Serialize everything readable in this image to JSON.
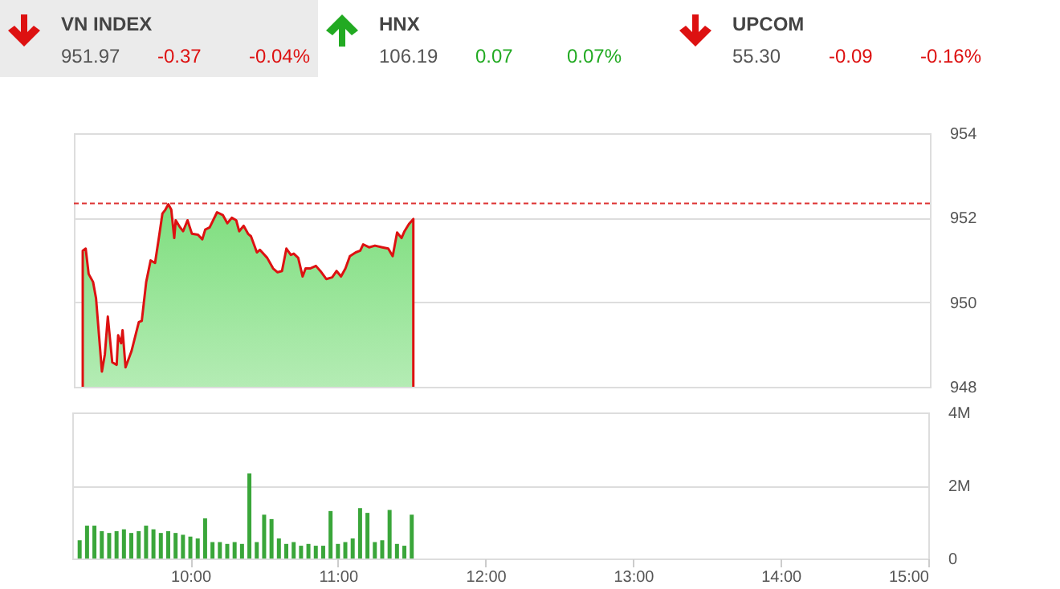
{
  "chart_data": [
    {
      "type": "other",
      "annotations": [
        "VN INDEX",
        "951.97",
        "-0.37",
        "-0.04%",
        "HNX",
        "106.19",
        "0.07",
        "0.07%",
        "UPCOM",
        "55.30",
        "-0.09",
        "-0.16%"
      ]
    },
    {
      "type": "area",
      "xlim": [
        9.2,
        15
      ],
      "ylim": [
        948,
        954
      ],
      "yticks": [
        948,
        950,
        952,
        954
      ],
      "grid": "y",
      "tick_labels": "y",
      "ref_lines": [
        {
          "axis": "y",
          "value": 952.34,
          "color": "#dd3333",
          "line_style": "dashed"
        }
      ],
      "series": [
        {
          "color": "#dd1111",
          "x": [
            9.26,
            9.28,
            9.3,
            9.33,
            9.35,
            9.39,
            9.41,
            9.43,
            9.46,
            9.49,
            9.5,
            9.52,
            9.53,
            9.55,
            9.59,
            9.64,
            9.66,
            9.69,
            9.72,
            9.75,
            9.78,
            9.8,
            9.82,
            9.84,
            9.86,
            9.88,
            9.89,
            9.92,
            9.94,
            9.97,
            10.0,
            10.04,
            10.07,
            10.09,
            10.12,
            10.17,
            10.21,
            10.24,
            10.27,
            10.3,
            10.32,
            10.35,
            10.38,
            10.4,
            10.44,
            10.46,
            10.51,
            10.55,
            10.58,
            10.61,
            10.64,
            10.67,
            10.69,
            10.72,
            10.75,
            10.77,
            10.8,
            10.84,
            10.87,
            10.91,
            10.95,
            10.98,
            11.01,
            11.04,
            11.07,
            11.11,
            11.14,
            11.16,
            11.2,
            11.24,
            11.29,
            11.33,
            11.36,
            11.39,
            11.42,
            11.44,
            11.47,
            11.5
          ],
          "values": [
            951.22,
            951.27,
            950.67,
            950.48,
            950.1,
            948.36,
            948.77,
            949.66,
            948.58,
            948.52,
            949.22,
            949.03,
            949.34,
            948.46,
            948.84,
            949.53,
            949.56,
            950.48,
            950.99,
            950.93,
            951.62,
            952.1,
            952.19,
            952.32,
            952.19,
            951.52,
            951.94,
            951.77,
            951.68,
            951.94,
            951.62,
            951.6,
            951.49,
            951.72,
            951.77,
            952.13,
            952.06,
            951.87,
            952.0,
            951.94,
            951.68,
            951.81,
            951.62,
            951.56,
            951.18,
            951.24,
            951.05,
            950.8,
            950.71,
            950.74,
            951.27,
            951.12,
            951.15,
            951.05,
            950.61,
            950.8,
            950.8,
            950.86,
            950.74,
            950.55,
            950.59,
            950.74,
            950.61,
            950.8,
            951.09,
            951.18,
            951.22,
            951.37,
            951.3,
            951.34,
            951.3,
            951.27,
            951.09,
            951.65,
            951.52,
            951.68,
            951.85,
            951.97
          ]
        }
      ]
    },
    {
      "type": "bar",
      "xlim": [
        9.2,
        15
      ],
      "xticks": [
        {
          "value": 10,
          "label": "10:00"
        },
        {
          "value": 11,
          "label": "11:00"
        },
        {
          "value": 12,
          "label": "12:00"
        },
        {
          "value": 13,
          "label": "13:00"
        },
        {
          "value": 14,
          "label": "14:00"
        },
        {
          "value": 15,
          "label": "15:00"
        }
      ],
      "ylim": [
        0,
        4
      ],
      "yticks": [
        0,
        {
          "value": 2,
          "label": "2M"
        },
        {
          "value": 4,
          "label": "4M"
        }
      ],
      "grid": "y",
      "series": [
        {
          "color": "#3aa63a",
          "x": [
            9.25,
            9.3,
            9.35,
            9.4,
            9.45,
            9.5,
            9.55,
            9.6,
            9.65,
            9.7,
            9.75,
            9.8,
            9.85,
            9.9,
            9.95,
            10.0,
            10.05,
            10.1,
            10.15,
            10.2,
            10.25,
            10.3,
            10.35,
            10.4,
            10.45,
            10.5,
            10.55,
            10.6,
            10.65,
            10.7,
            10.75,
            10.8,
            10.85,
            10.9,
            10.95,
            11.0,
            11.05,
            11.1,
            11.15,
            11.2,
            11.25,
            11.3,
            11.35,
            11.4,
            11.45,
            11.5
          ],
          "values": [
            0.5,
            0.9,
            0.9,
            0.75,
            0.7,
            0.75,
            0.8,
            0.7,
            0.75,
            0.9,
            0.8,
            0.7,
            0.75,
            0.7,
            0.65,
            0.6,
            0.55,
            1.1,
            0.45,
            0.45,
            0.4,
            0.45,
            0.4,
            2.33,
            0.45,
            1.2,
            1.08,
            0.55,
            0.4,
            0.45,
            0.35,
            0.4,
            0.35,
            0.35,
            1.3,
            0.4,
            0.45,
            0.55,
            1.38,
            1.25,
            0.45,
            0.5,
            1.33,
            0.4,
            0.35,
            1.2
          ]
        }
      ]
    }
  ]
}
